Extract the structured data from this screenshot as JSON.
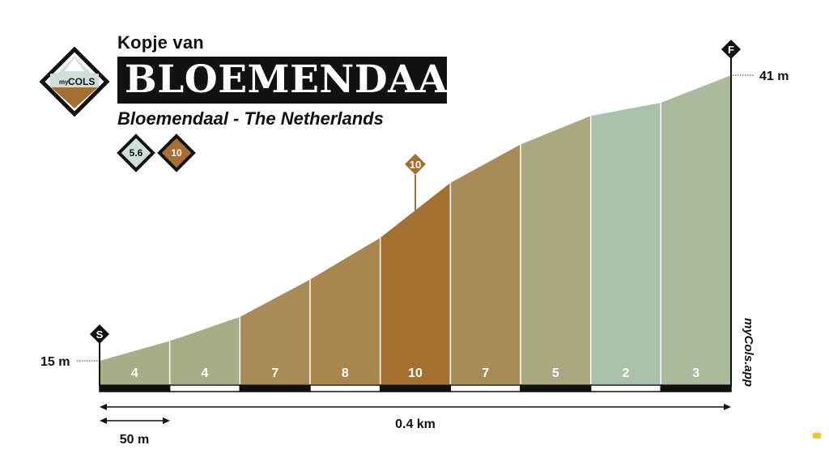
{
  "header": {
    "pre_title": "Kopje van",
    "title": "BLOEMENDAAL",
    "subtitle": "Bloemendaal - The Netherlands"
  },
  "logo": {
    "text_small": "my",
    "text_big": "COLS",
    "icon": "mountain-diamond-icon"
  },
  "badges": [
    {
      "name": "average-gradient-badge",
      "value": "5.6",
      "color": "#cfe0dc"
    },
    {
      "name": "max-gradient-badge",
      "value": "10",
      "color": "#a86f32"
    }
  ],
  "markers": {
    "start": "S",
    "finish": "F",
    "max": "10"
  },
  "watermark": "myCols.app",
  "colors": {
    "gradient_2": "#a9c2a9",
    "gradient_3": "#a9bb9c",
    "gradient_4": "#a9ad86",
    "gradient_5": "#a9a881",
    "gradient_7": "#a98c55",
    "gradient_8": "#a8874c",
    "gradient_10": "#a3702f"
  },
  "chart_data": {
    "type": "area",
    "title": "BLOEMENDAAL",
    "x_unit": "m",
    "y_unit": "m",
    "start_altitude_label": "15 m",
    "finish_altitude_label": "41 m",
    "total_distance_label": "0.4 km",
    "scale_label": "50 m",
    "start_altitude": 15,
    "finish_altitude": 41,
    "segment_length_m": 50,
    "segments": [
      {
        "gradient": 4,
        "label": "4"
      },
      {
        "gradient": 4,
        "label": "4"
      },
      {
        "gradient": 7,
        "label": "7"
      },
      {
        "gradient": 8,
        "label": "8"
      },
      {
        "gradient": 10,
        "label": "10"
      },
      {
        "gradient": 7,
        "label": "7"
      },
      {
        "gradient": 5,
        "label": "5"
      },
      {
        "gradient": 2,
        "label": "2"
      },
      {
        "gradient": 3,
        "label": "3"
      }
    ],
    "altitudes": [
      15,
      16.8,
      19.0,
      22.4,
      26.2,
      31.2,
      34.7,
      37.3,
      38.5,
      41
    ]
  }
}
